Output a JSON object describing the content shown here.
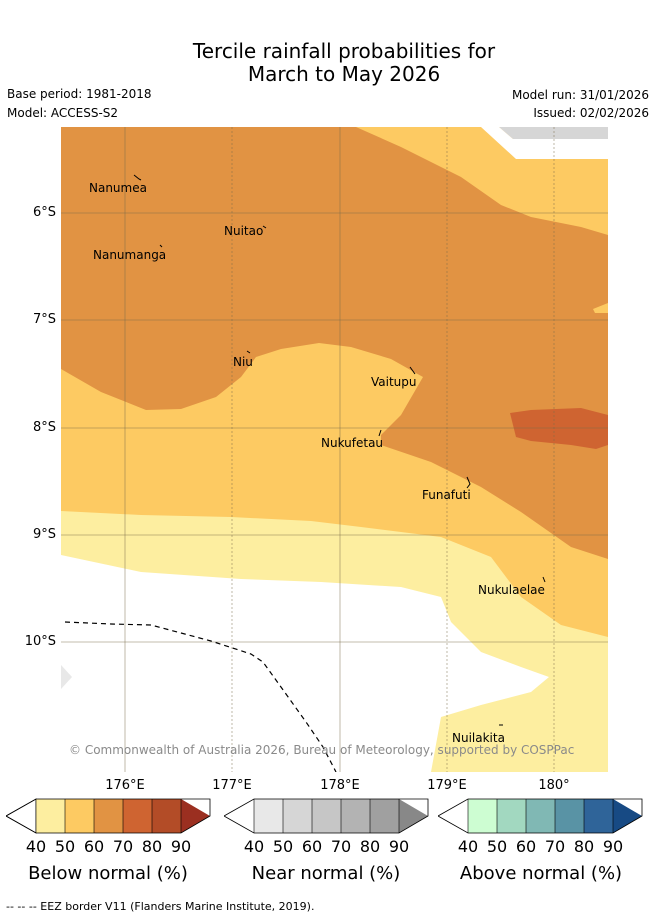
{
  "title": {
    "line1": "Tercile rainfall probabilities for",
    "line2": "March to May 2026"
  },
  "meta": {
    "base_period": "Base period: 1981-2018",
    "model": "Model: ACCESS-S2",
    "model_run": "Model run: 31/01/2026",
    "issued": "Issued: 02/02/2026"
  },
  "places": [
    "Nanumea",
    "Nuitao",
    "Nanumanga",
    "Niu",
    "Vaitupu",
    "Nukufetau",
    "Funafuti",
    "Nukulaelae",
    "Nuilakita"
  ],
  "axes": {
    "lat_labels": [
      "6°S",
      "7°S",
      "8°S",
      "9°S",
      "10°S"
    ],
    "lon_labels": [
      "176°E",
      "177°E",
      "178°E",
      "179°E",
      "180°"
    ]
  },
  "copyright": "© Commonwealth of Australia 2026, Bureau of Meteorology, supported by COSPPac",
  "colorbars": {
    "ticks": [
      "40",
      "50",
      "60",
      "70",
      "80",
      "90"
    ],
    "below": {
      "title": "Below normal (%)",
      "colors": [
        "#fdeea0",
        "#fdca62",
        "#e19343",
        "#cf6431",
        "#b34c27",
        "#9b2f20"
      ]
    },
    "near": {
      "title": "Near normal (%)",
      "colors": [
        "#e8e8e8",
        "#d6d6d6",
        "#c6c6c6",
        "#b3b3b3",
        "#a0a0a0",
        "#888888"
      ]
    },
    "above": {
      "title": "Above normal (%)",
      "colors": [
        "#cdfdd2",
        "#a2d8c0",
        "#80b8b4",
        "#5993a5",
        "#2f6499",
        "#174a84"
      ]
    }
  },
  "legend": {
    "eez": "-- EEZ border V11 (Flanders Marine Institute, 2019)."
  }
}
